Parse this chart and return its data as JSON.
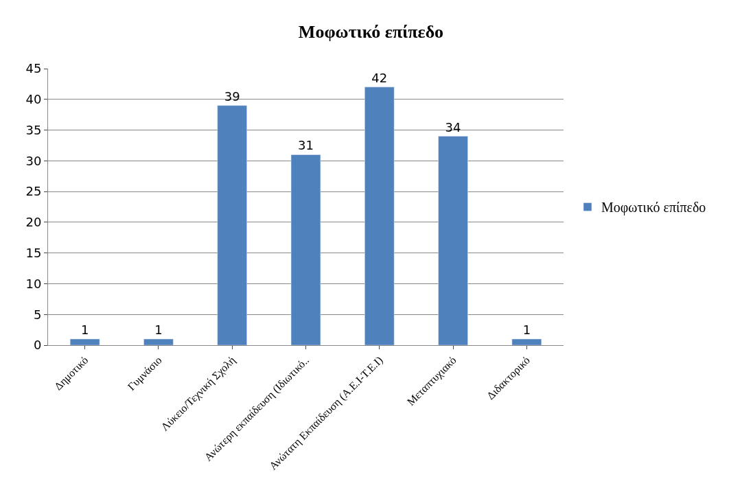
{
  "chart_data": {
    "type": "bar",
    "title": "Μοφωτικό επίπεδο",
    "categories": [
      "Δημοτικό",
      "Γυμνάσιο",
      "Λύκειο/Τεχνική Σχολή",
      "Ανώτερη εκπαίδευση (Ιδιωτικό..",
      "Ανώτατη Εκπαίδευση (Α.Ε.Ι-Τ.Ε.Ι)",
      "Μεταπτυχιακό",
      "Διδακτορικό"
    ],
    "series": [
      {
        "name": "Μοφωτικό επίπεδο",
        "color": "#4f81bd",
        "values": [
          1,
          1,
          39,
          31,
          42,
          34,
          1
        ]
      }
    ],
    "ylim": [
      0,
      45
    ],
    "yticks": [
      0,
      5,
      10,
      15,
      20,
      25,
      30,
      35,
      40,
      45
    ],
    "grid": "y",
    "legend": "right",
    "data_labels": true
  }
}
